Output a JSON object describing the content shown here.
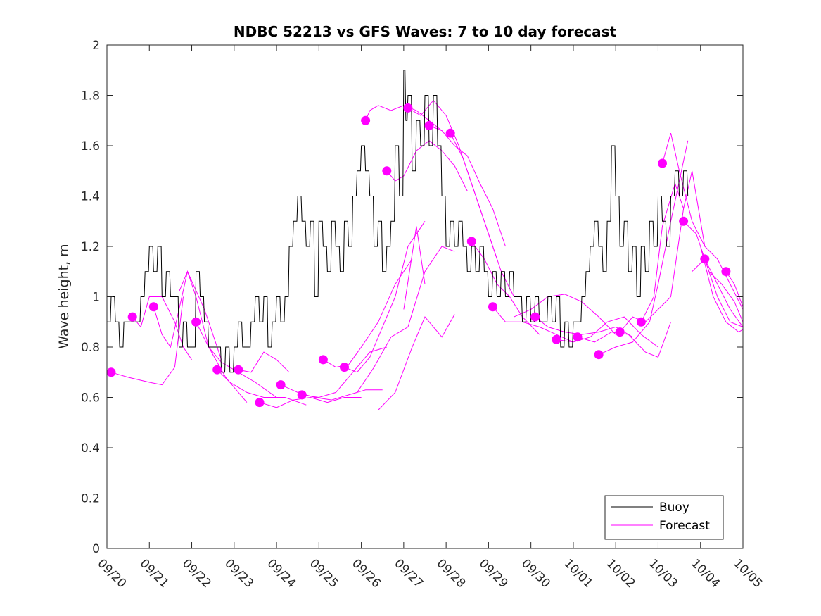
{
  "chart_data": {
    "type": "line",
    "title": "NDBC 52213 vs GFS Waves: 7 to 10 day forecast",
    "xlabel": "",
    "ylabel": "Wave height, m",
    "xlim_days": [
      0,
      15
    ],
    "ylim": [
      0,
      2
    ],
    "grid": false,
    "x_tick_labels": [
      "09/20",
      "09/21",
      "09/22",
      "09/23",
      "09/24",
      "09/25",
      "09/26",
      "09/27",
      "09/28",
      "09/29",
      "09/30",
      "10/01",
      "10/02",
      "10/03",
      "10/04",
      "10/05"
    ],
    "y_ticks": [
      0,
      0.2,
      0.4,
      0.6,
      0.8,
      1,
      1.2,
      1.4,
      1.6,
      1.8,
      2
    ],
    "y_tick_labels": [
      "0",
      "0.2",
      "0.4",
      "0.6",
      "0.8",
      "1",
      "1.2",
      "1.4",
      "1.6",
      "1.8",
      "2"
    ],
    "legend": {
      "placement": "bottom-right",
      "entries": [
        {
          "name": "Buoy",
          "color": "#000000"
        },
        {
          "name": "Forecast",
          "color": "#ff00ff"
        }
      ]
    },
    "colors": {
      "buoy": "#000000",
      "forecast": "#ff00ff",
      "axis": "#262626"
    },
    "buoy_series": {
      "name": "Buoy",
      "x_days": [
        0.0,
        0.1,
        0.2,
        0.3,
        0.4,
        0.5,
        0.6,
        0.7,
        0.8,
        0.9,
        1.0,
        1.1,
        1.2,
        1.3,
        1.4,
        1.5,
        1.6,
        1.7,
        1.8,
        1.9,
        2.0,
        2.1,
        2.2,
        2.3,
        2.4,
        2.5,
        2.6,
        2.7,
        2.8,
        2.9,
        3.0,
        3.1,
        3.2,
        3.3,
        3.4,
        3.5,
        3.6,
        3.7,
        3.8,
        3.9,
        4.0,
        4.1,
        4.2,
        4.3,
        4.4,
        4.5,
        4.6,
        4.7,
        4.8,
        4.9,
        5.0,
        5.1,
        5.2,
        5.3,
        5.4,
        5.5,
        5.6,
        5.7,
        5.8,
        5.9,
        6.0,
        6.1,
        6.2,
        6.3,
        6.4,
        6.5,
        6.6,
        6.7,
        6.8,
        6.9,
        7.0,
        7.05,
        7.1,
        7.2,
        7.3,
        7.4,
        7.5,
        7.6,
        7.7,
        7.8,
        7.9,
        8.0,
        8.1,
        8.2,
        8.3,
        8.4,
        8.5,
        8.6,
        8.7,
        8.8,
        8.9,
        9.0,
        9.1,
        9.2,
        9.3,
        9.4,
        9.5,
        9.6,
        9.7,
        9.8,
        9.9,
        10.0,
        10.1,
        10.2,
        10.3,
        10.4,
        10.5,
        10.6,
        10.7,
        10.8,
        10.9,
        11.0,
        11.1,
        11.2,
        11.3,
        11.4,
        11.5,
        11.6,
        11.7,
        11.8,
        11.9,
        12.0,
        12.1,
        12.2,
        12.3,
        12.4,
        12.5,
        12.6,
        12.7,
        12.8,
        12.9,
        13.0,
        13.1,
        13.2,
        13.3,
        13.4,
        13.5,
        13.6,
        13.7,
        13.8,
        13.9,
        14.0,
        14.1,
        14.2
      ],
      "values": [
        0.9,
        1.0,
        0.9,
        0.8,
        0.9,
        0.9,
        0.9,
        0.9,
        1.0,
        1.1,
        1.2,
        1.1,
        1.2,
        1.0,
        1.1,
        1.0,
        1.0,
        0.8,
        0.9,
        0.8,
        0.8,
        1.1,
        1.0,
        0.9,
        0.8,
        0.8,
        0.8,
        0.7,
        0.8,
        0.7,
        0.8,
        0.9,
        0.8,
        0.8,
        0.9,
        1.0,
        0.9,
        1.0,
        0.8,
        0.9,
        1.0,
        0.9,
        1.0,
        1.2,
        1.3,
        1.4,
        1.3,
        1.2,
        1.3,
        1.0,
        1.3,
        1.2,
        1.1,
        1.3,
        1.2,
        1.1,
        1.3,
        1.2,
        1.4,
        1.5,
        1.6,
        1.5,
        1.4,
        1.2,
        1.3,
        1.1,
        1.2,
        1.3,
        1.6,
        1.4,
        1.9,
        1.7,
        1.8,
        1.5,
        1.7,
        1.6,
        1.8,
        1.6,
        1.8,
        1.6,
        1.4,
        1.2,
        1.3,
        1.2,
        1.3,
        1.2,
        1.1,
        1.2,
        1.1,
        1.2,
        1.1,
        1.0,
        1.1,
        1.0,
        1.1,
        1.0,
        1.1,
        1.0,
        1.0,
        0.9,
        1.0,
        0.9,
        1.0,
        0.9,
        0.9,
        1.0,
        0.9,
        1.0,
        0.8,
        0.9,
        0.8,
        0.9,
        0.9,
        1.0,
        1.1,
        1.2,
        1.3,
        1.2,
        1.1,
        1.3,
        1.6,
        1.4,
        1.2,
        1.3,
        1.1,
        1.2,
        1.0,
        1.2,
        1.1,
        1.3,
        1.2,
        1.4,
        1.3,
        1.2,
        1.4,
        1.5,
        1.4,
        1.5,
        1.4,
        1.4
      ]
    },
    "forecast_markers": {
      "x_days": [
        0.1,
        0.6,
        1.1,
        2.1,
        2.6,
        3.1,
        3.6,
        4.1,
        4.6,
        5.1,
        5.6,
        6.1,
        6.6,
        7.1,
        7.6,
        8.1,
        8.6,
        9.1,
        10.1,
        10.6,
        11.1,
        11.6,
        12.1,
        12.6,
        13.1,
        13.6,
        14.1,
        14.6
      ],
      "values": [
        0.7,
        0.92,
        0.96,
        0.9,
        0.71,
        0.71,
        0.58,
        0.65,
        0.61,
        0.75,
        0.72,
        1.7,
        1.5,
        1.75,
        1.68,
        1.65,
        1.22,
        0.96,
        0.92,
        0.83,
        0.84,
        0.77,
        0.86,
        0.9,
        1.53,
        1.3,
        1.15,
        1.1
      ]
    },
    "forecast_series": [
      {
        "x_days": [
          0.1,
          0.5,
          1.0,
          1.3,
          1.6,
          1.8
        ],
        "values": [
          0.7,
          0.68,
          0.66,
          0.65,
          0.72,
          1.0
        ]
      },
      {
        "x_days": [
          0.6,
          0.8,
          1.0,
          1.3,
          1.6,
          1.8,
          2.0
        ],
        "values": [
          0.92,
          0.88,
          1.0,
          1.0,
          0.9,
          0.8,
          0.75
        ]
      },
      {
        "x_days": [
          1.1,
          1.3,
          1.5,
          1.7,
          1.9,
          2.3,
          2.7
        ],
        "values": [
          0.96,
          0.85,
          0.8,
          0.95,
          1.1,
          0.95,
          0.75
        ]
      },
      {
        "x_days": [
          1.7,
          1.9,
          2.1,
          2.4,
          2.8,
          3.3
        ],
        "values": [
          1.02,
          1.1,
          1.0,
          0.8,
          0.68,
          0.58
        ]
      },
      {
        "x_days": [
          2.1,
          2.4,
          2.7,
          3.1,
          3.5,
          4.0
        ],
        "values": [
          0.9,
          0.8,
          0.74,
          0.7,
          0.66,
          0.6
        ]
      },
      {
        "x_days": [
          2.6,
          2.9,
          3.3,
          3.7,
          4.2,
          4.7
        ],
        "values": [
          0.71,
          0.66,
          0.62,
          0.6,
          0.6,
          0.57
        ]
      },
      {
        "x_days": [
          3.1,
          3.4,
          3.7,
          4.0,
          4.3
        ],
        "values": [
          0.71,
          0.7,
          0.78,
          0.75,
          0.7
        ]
      },
      {
        "x_days": [
          3.6,
          4.0,
          4.4,
          4.8,
          5.2,
          5.6,
          6.0
        ],
        "values": [
          0.58,
          0.56,
          0.59,
          0.6,
          0.58,
          0.6,
          0.6
        ]
      },
      {
        "x_days": [
          4.1,
          4.5,
          4.9,
          5.3,
          5.7,
          6.1,
          6.5
        ],
        "values": [
          0.65,
          0.62,
          0.6,
          0.59,
          0.61,
          0.63,
          0.63
        ]
      },
      {
        "x_days": [
          4.6,
          5.0,
          5.4,
          5.8,
          6.2,
          6.6
        ],
        "values": [
          0.61,
          0.6,
          0.62,
          0.7,
          0.78,
          0.8
        ]
      },
      {
        "x_days": [
          5.1,
          5.4,
          5.7,
          6.0,
          6.4,
          6.8,
          7.2
        ],
        "values": [
          0.75,
          0.72,
          0.73,
          0.8,
          0.9,
          1.05,
          1.15
        ]
      },
      {
        "x_days": [
          5.6,
          5.9,
          6.2,
          6.5,
          6.8,
          7.1,
          7.5
        ],
        "values": [
          0.72,
          0.7,
          0.76,
          0.88,
          1.0,
          1.2,
          1.3
        ]
      },
      {
        "x_days": [
          6.1,
          6.2,
          6.4,
          6.7,
          7.0,
          7.3,
          7.6,
          7.9
        ],
        "values": [
          1.7,
          1.74,
          1.76,
          1.74,
          1.76,
          1.74,
          1.7,
          1.66
        ]
      },
      {
        "x_days": [
          6.6,
          6.8,
          7.0,
          7.3,
          7.6,
          7.9,
          8.2,
          8.5
        ],
        "values": [
          1.5,
          1.46,
          1.48,
          1.58,
          1.62,
          1.58,
          1.52,
          1.42
        ]
      },
      {
        "x_days": [
          7.1,
          7.4,
          7.7,
          8.0,
          8.3,
          8.6,
          8.9,
          9.2
        ],
        "values": [
          1.75,
          1.72,
          1.78,
          1.72,
          1.6,
          1.45,
          1.3,
          1.15
        ]
      },
      {
        "x_days": [
          7.6,
          7.9,
          8.2,
          8.5,
          8.8,
          9.1,
          9.4
        ],
        "values": [
          1.68,
          1.66,
          1.6,
          1.56,
          1.45,
          1.35,
          1.2
        ]
      },
      {
        "x_days": [
          8.1,
          8.4,
          8.7,
          9.0,
          9.3,
          9.6
        ],
        "values": [
          1.65,
          1.55,
          1.4,
          1.25,
          1.1,
          1.0
        ]
      },
      {
        "x_days": [
          5.9,
          6.3,
          6.7,
          7.1,
          7.5,
          7.9,
          8.2
        ],
        "values": [
          0.62,
          0.72,
          0.84,
          0.88,
          1.1,
          1.2,
          1.18
        ]
      },
      {
        "x_days": [
          6.4,
          6.8,
          7.2,
          7.5,
          7.9,
          8.2
        ],
        "values": [
          0.55,
          0.62,
          0.8,
          0.92,
          0.84,
          0.93
        ]
      },
      {
        "x_days": [
          7.0,
          7.3,
          7.5
        ],
        "values": [
          0.95,
          1.28,
          1.05
        ]
      },
      {
        "x_days": [
          8.6,
          8.9,
          9.2,
          9.5,
          9.8,
          10.2
        ],
        "values": [
          1.22,
          1.15,
          1.05,
          1.0,
          0.92,
          0.85
        ]
      },
      {
        "x_days": [
          9.1,
          9.4,
          9.8,
          10.2,
          10.6,
          11.0
        ],
        "values": [
          0.96,
          0.9,
          0.9,
          0.88,
          0.85,
          0.82
        ]
      },
      {
        "x_days": [
          9.6,
          10.0,
          10.4,
          10.8,
          11.2,
          11.6,
          12.0
        ],
        "values": [
          0.92,
          0.95,
          1.0,
          1.01,
          0.98,
          0.92,
          0.85
        ]
      },
      {
        "x_days": [
          10.1,
          10.4,
          10.8,
          11.2,
          11.6,
          12.0,
          12.4
        ],
        "values": [
          0.92,
          0.88,
          0.86,
          0.85,
          0.86,
          0.88,
          0.84
        ]
      },
      {
        "x_days": [
          10.6,
          11.0,
          11.4,
          11.8,
          12.2,
          12.6,
          13.0
        ],
        "values": [
          0.83,
          0.82,
          0.84,
          0.9,
          0.92,
          0.85,
          0.8
        ]
      },
      {
        "x_days": [
          11.1,
          11.5,
          11.9,
          12.3,
          12.7,
          13.0,
          13.3
        ],
        "values": [
          0.84,
          0.82,
          0.86,
          0.85,
          0.78,
          0.76,
          0.9
        ]
      },
      {
        "x_days": [
          11.6,
          12.0,
          12.4,
          12.8,
          13.0,
          13.3,
          13.7
        ],
        "values": [
          0.77,
          0.8,
          0.82,
          0.9,
          1.05,
          1.3,
          1.62
        ]
      },
      {
        "x_days": [
          12.1,
          12.4,
          12.7,
          13.0,
          13.3,
          13.6
        ],
        "values": [
          0.86,
          0.92,
          0.9,
          0.95,
          1.0,
          1.35
        ]
      },
      {
        "x_days": [
          12.6,
          12.9,
          13.1,
          13.4,
          13.6,
          13.8,
          14.1
        ],
        "values": [
          0.9,
          1.0,
          1.28,
          1.45,
          1.35,
          1.5,
          1.2
        ]
      },
      {
        "x_days": [
          13.1,
          13.3,
          13.5,
          13.8,
          14.1,
          14.4,
          14.7,
          15.0
        ],
        "values": [
          1.53,
          1.65,
          1.5,
          1.3,
          1.2,
          1.15,
          1.05,
          0.95
        ]
      },
      {
        "x_days": [
          13.6,
          13.9,
          14.2,
          14.5,
          14.8,
          15.0
        ],
        "values": [
          1.3,
          1.25,
          1.1,
          1.05,
          0.98,
          0.9
        ]
      },
      {
        "x_days": [
          14.1,
          14.4,
          14.7,
          15.0
        ],
        "values": [
          1.15,
          1.05,
          0.95,
          0.88
        ]
      },
      {
        "x_days": [
          14.6,
          14.8,
          15.0
        ],
        "values": [
          1.1,
          1.05,
          0.96
        ]
      },
      {
        "x_days": [
          13.8,
          14.1,
          14.4,
          14.7,
          15.0
        ],
        "values": [
          1.1,
          1.15,
          1.0,
          0.9,
          0.88
        ]
      },
      {
        "x_days": [
          14.0,
          14.3,
          14.6,
          14.9,
          15.0
        ],
        "values": [
          1.2,
          1.0,
          0.9,
          0.86,
          0.87
        ]
      }
    ]
  }
}
